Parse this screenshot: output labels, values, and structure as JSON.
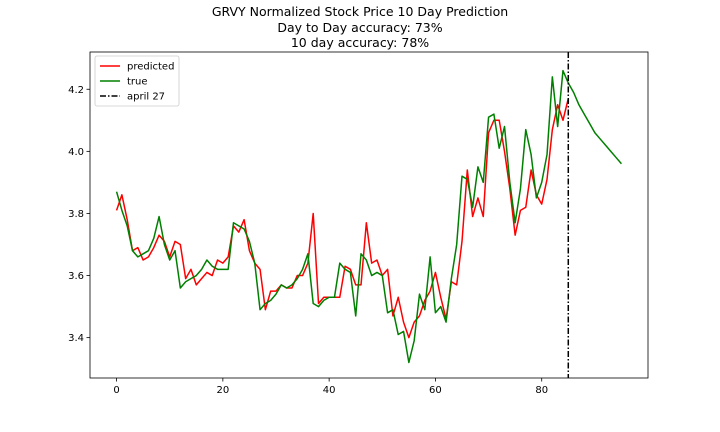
{
  "chart_data": {
    "type": "line",
    "title_lines": [
      "GRVY Normalized Stock Price 10 Day Prediction",
      "Day to Day accuracy: 73%",
      "10 day accuracy: 78%"
    ],
    "xlabel": "",
    "ylabel": "",
    "xlim": [
      -5,
      100
    ],
    "ylim": [
      3.27,
      4.32
    ],
    "xticks": [
      0,
      20,
      40,
      60,
      80
    ],
    "yticks": [
      3.4,
      3.6,
      3.8,
      4.0,
      4.2
    ],
    "ytick_labels": [
      "3.4",
      "3.6",
      "3.8",
      "4.0",
      "4.2"
    ],
    "grid": false,
    "legend_position": "upper-left",
    "vline": {
      "name": "april 27",
      "x": 85,
      "color": "#000000",
      "style": "dash-dot"
    },
    "series": [
      {
        "name": "predicted",
        "color": "#ff0000",
        "x": [
          0,
          1,
          2,
          3,
          4,
          5,
          6,
          7,
          8,
          9,
          10,
          11,
          12,
          13,
          14,
          15,
          16,
          17,
          18,
          19,
          20,
          21,
          22,
          23,
          24,
          25,
          26,
          27,
          28,
          29,
          30,
          31,
          32,
          33,
          34,
          35,
          36,
          37,
          38,
          39,
          40,
          41,
          42,
          43,
          44,
          45,
          46,
          47,
          48,
          49,
          50,
          51,
          52,
          53,
          54,
          55,
          56,
          57,
          58,
          59,
          60,
          61,
          62,
          63,
          64,
          65,
          66,
          67,
          68,
          69,
          70,
          71,
          72,
          73,
          74,
          75,
          76,
          77,
          78,
          79,
          80,
          81,
          82,
          83,
          84,
          85
        ],
        "values": [
          3.81,
          3.86,
          3.78,
          3.68,
          3.69,
          3.65,
          3.66,
          3.69,
          3.73,
          3.71,
          3.66,
          3.71,
          3.7,
          3.59,
          3.62,
          3.57,
          3.59,
          3.61,
          3.6,
          3.65,
          3.64,
          3.66,
          3.76,
          3.74,
          3.78,
          3.68,
          3.64,
          3.62,
          3.49,
          3.55,
          3.55,
          3.57,
          3.56,
          3.56,
          3.6,
          3.6,
          3.64,
          3.8,
          3.51,
          3.53,
          3.53,
          3.53,
          3.53,
          3.63,
          3.62,
          3.57,
          3.57,
          3.77,
          3.64,
          3.65,
          3.6,
          3.62,
          3.47,
          3.53,
          3.45,
          3.4,
          3.45,
          3.47,
          3.52,
          3.55,
          3.61,
          3.53,
          3.46,
          3.58,
          3.57,
          3.71,
          3.94,
          3.79,
          3.85,
          3.79,
          4.06,
          4.1,
          4.1,
          4.0,
          3.88,
          3.73,
          3.81,
          3.82,
          3.94,
          3.86,
          3.83,
          3.91,
          4.07,
          4.15,
          4.1,
          4.17
        ]
      },
      {
        "name": "true",
        "color": "#008000",
        "x": [
          0,
          1,
          2,
          3,
          4,
          5,
          6,
          7,
          8,
          9,
          10,
          11,
          12,
          13,
          14,
          15,
          16,
          17,
          18,
          19,
          20,
          21,
          22,
          23,
          24,
          25,
          26,
          27,
          28,
          29,
          30,
          31,
          32,
          33,
          34,
          35,
          36,
          37,
          38,
          39,
          40,
          41,
          42,
          43,
          44,
          45,
          46,
          47,
          48,
          49,
          50,
          51,
          52,
          53,
          54,
          55,
          56,
          57,
          58,
          59,
          60,
          61,
          62,
          63,
          64,
          65,
          66,
          67,
          68,
          69,
          70,
          71,
          72,
          73,
          74,
          75,
          76,
          77,
          78,
          79,
          80,
          81,
          82,
          83,
          84,
          85,
          86,
          87,
          88,
          89,
          90,
          91,
          92,
          93,
          94,
          95
        ],
        "values": [
          3.87,
          3.81,
          3.76,
          3.68,
          3.66,
          3.67,
          3.68,
          3.72,
          3.79,
          3.7,
          3.65,
          3.68,
          3.56,
          3.58,
          3.59,
          3.6,
          3.62,
          3.65,
          3.63,
          3.62,
          3.62,
          3.62,
          3.77,
          3.76,
          3.75,
          3.71,
          3.64,
          3.49,
          3.51,
          3.52,
          3.54,
          3.57,
          3.56,
          3.57,
          3.59,
          3.62,
          3.67,
          3.51,
          3.5,
          3.52,
          3.53,
          3.53,
          3.64,
          3.62,
          3.61,
          3.47,
          3.67,
          3.65,
          3.6,
          3.61,
          3.6,
          3.48,
          3.49,
          3.41,
          3.42,
          3.32,
          3.39,
          3.54,
          3.49,
          3.66,
          3.48,
          3.5,
          3.45,
          3.59,
          3.7,
          3.92,
          3.91,
          3.82,
          3.95,
          3.9,
          4.11,
          4.12,
          4.01,
          4.08,
          3.9,
          3.77,
          3.88,
          4.07,
          3.99,
          3.85,
          3.9,
          3.99,
          4.24,
          4.08,
          4.26,
          4.22,
          4.19,
          4.15,
          4.12,
          4.09,
          4.06,
          4.04,
          4.02,
          4.0,
          3.98,
          3.96
        ]
      }
    ]
  }
}
